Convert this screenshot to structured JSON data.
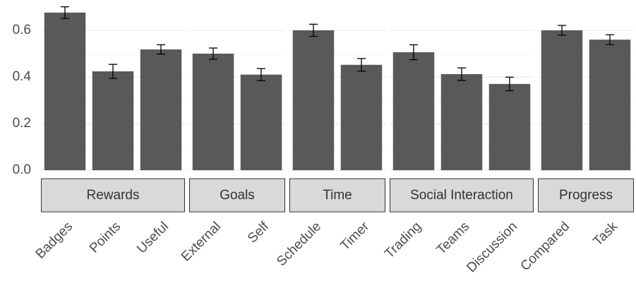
{
  "chart_data": {
    "type": "bar",
    "color": "#595959",
    "grid": true,
    "ylim": [
      0,
      0.73
    ],
    "yticks": [
      {
        "value": 0,
        "label": "0.0"
      },
      {
        "value": 0.2,
        "label": "0.2"
      },
      {
        "value": 0.4,
        "label": "0.4"
      },
      {
        "value": 0.6,
        "label": "0.6"
      }
    ],
    "facets": [
      {
        "name": "Rewards",
        "categories": [
          "Badges",
          "Points",
          "Useful"
        ],
        "values": [
          0.676,
          0.424,
          0.518
        ],
        "errors": [
          0.025,
          0.03,
          0.02
        ]
      },
      {
        "name": "Goals",
        "categories": [
          "External",
          "Self"
        ],
        "values": [
          0.5,
          0.41
        ],
        "errors": [
          0.024,
          0.026
        ]
      },
      {
        "name": "Time",
        "categories": [
          "Schedule",
          "Timer"
        ],
        "values": [
          0.6,
          0.452
        ],
        "errors": [
          0.026,
          0.027
        ]
      },
      {
        "name": "Social Interaction",
        "categories": [
          "Trading",
          "Teams",
          "Discussion"
        ],
        "values": [
          0.506,
          0.412,
          0.37
        ],
        "errors": [
          0.032,
          0.027,
          0.029
        ]
      },
      {
        "name": "Progress",
        "categories": [
          "Compared",
          "Task"
        ],
        "values": [
          0.6,
          0.56
        ],
        "errors": [
          0.021,
          0.021
        ]
      }
    ]
  }
}
